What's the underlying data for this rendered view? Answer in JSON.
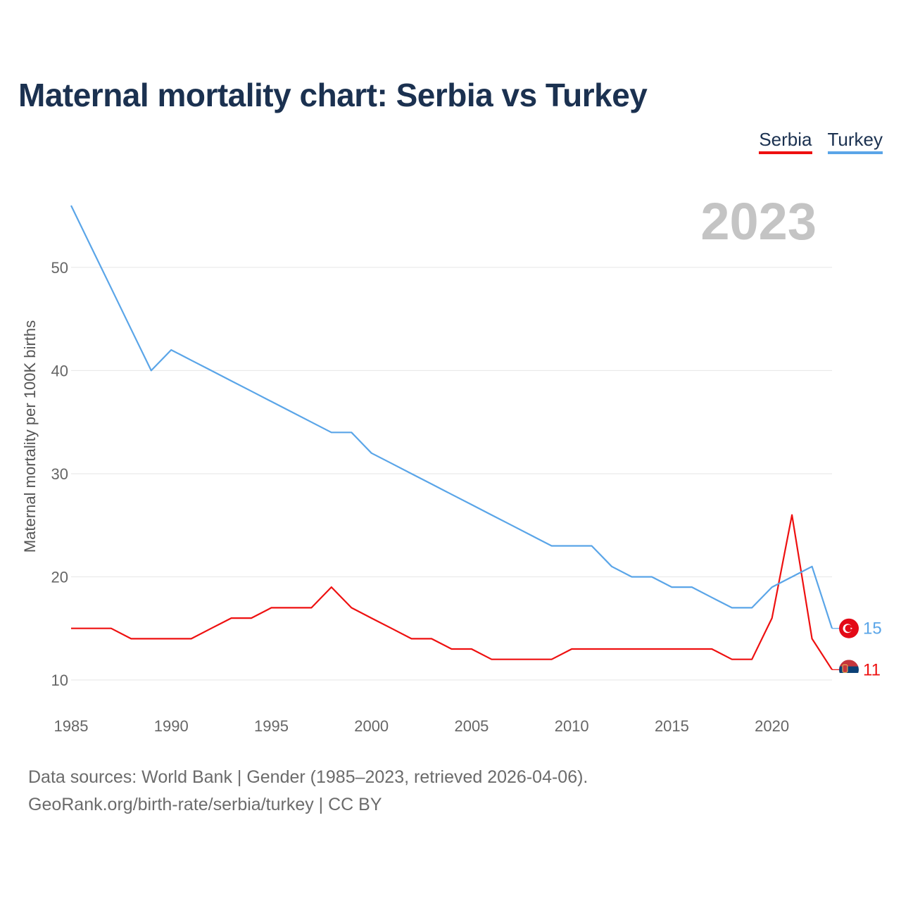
{
  "title": "Maternal mortality chart: Serbia vs Turkey",
  "legend": {
    "serbia": "Serbia",
    "turkey": "Turkey"
  },
  "footer": {
    "line1": "Data sources: World Bank | Gender (1985–2023, retrieved 2026-04-06).",
    "line2": "GeoRank.org/birth-rate/serbia/turkey | CC BY"
  },
  "colors": {
    "serbia": "#ee1010",
    "turkey": "#5aa5e8",
    "title": "#1b3150",
    "grid": "#e6e6e6",
    "year_watermark": "#c4c4c4"
  },
  "chart_data": {
    "type": "line",
    "current_year_label": "2023",
    "ylabel": "Maternal mortality per 100K births",
    "xlabel": "",
    "xlim": [
      1985,
      2023
    ],
    "ylim": [
      10,
      56
    ],
    "x_ticks": [
      1985,
      1990,
      1995,
      2000,
      2005,
      2010,
      2015,
      2020
    ],
    "y_ticks": [
      10,
      20,
      30,
      40,
      50
    ],
    "x": [
      1985,
      1986,
      1987,
      1988,
      1989,
      1990,
      1991,
      1992,
      1993,
      1994,
      1995,
      1996,
      1997,
      1998,
      1999,
      2000,
      2001,
      2002,
      2003,
      2004,
      2005,
      2006,
      2007,
      2008,
      2009,
      2010,
      2011,
      2012,
      2013,
      2014,
      2015,
      2016,
      2017,
      2018,
      2019,
      2020,
      2021,
      2022,
      2023
    ],
    "series": [
      {
        "name": "Serbia",
        "key": "serbia",
        "flag": "serbia-flag-icon",
        "end_label": "11",
        "values": [
          15,
          15,
          15,
          14,
          14,
          14,
          14,
          15,
          16,
          16,
          17,
          17,
          17,
          19,
          17,
          16,
          15,
          14,
          14,
          13,
          13,
          12,
          12,
          12,
          12,
          13,
          13,
          13,
          13,
          13,
          13,
          13,
          13,
          12,
          12,
          16,
          26,
          14,
          11
        ]
      },
      {
        "name": "Turkey",
        "key": "turkey",
        "flag": "turkey-flag-icon",
        "end_label": "15",
        "values": [
          56,
          52,
          48,
          44,
          40,
          42,
          41,
          40,
          39,
          38,
          37,
          36,
          35,
          34,
          34,
          32,
          31,
          30,
          29,
          28,
          27,
          26,
          25,
          24,
          23,
          23,
          23,
          21,
          20,
          20,
          19,
          19,
          18,
          17,
          17,
          19,
          20,
          21,
          15
        ]
      }
    ]
  }
}
